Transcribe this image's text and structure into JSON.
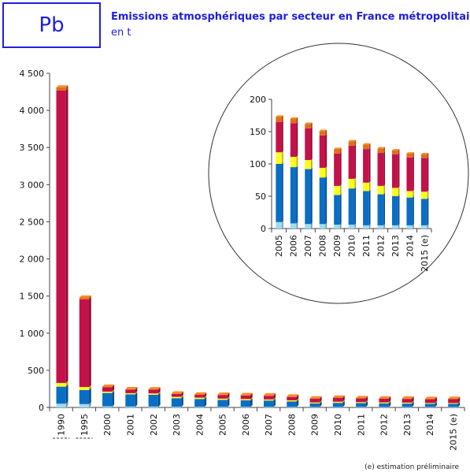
{
  "header": {
    "code": "Pb",
    "title": "Emissions atmosphériques par secteur en France métropolitaine",
    "subtitle": "en t"
  },
  "footnote": "(e) estimation préliminaire",
  "colors": {
    "light_blue": "#9fdcf2",
    "blue": "#0a6ec4",
    "yellow": "#fdfd1e",
    "red": "#c4114a",
    "orange": "#e26e1c",
    "accent": "#1f1fdc"
  },
  "chart_data": [
    {
      "type": "bar",
      "stacked": true,
      "categories": [
        "1990",
        "1995",
        "2000",
        "2001",
        "2002",
        "2003",
        "2004",
        "2005",
        "2006",
        "2007",
        "2008",
        "2009",
        "2010",
        "2011",
        "2012",
        "2013",
        "2014",
        "2015 (e)"
      ],
      "ylim": [
        0,
        4500
      ],
      "yticks": [
        "0",
        "500",
        "1 000",
        "1 500",
        "2 000",
        "2 500",
        "3 000",
        "3 500",
        "4 000",
        "4 500"
      ],
      "ytick_values": [
        0,
        500,
        1000,
        1500,
        2000,
        2500,
        3000,
        3500,
        4000,
        4500
      ],
      "series": [
        {
          "color_key": "light_blue",
          "values": [
            50,
            45,
            15,
            12,
            12,
            10,
            9,
            8,
            8,
            8,
            7,
            6,
            6,
            6,
            6,
            6,
            6,
            6
          ]
        },
        {
          "color_key": "blue",
          "values": [
            230,
            190,
            180,
            165,
            160,
            115,
            105,
            93,
            88,
            85,
            73,
            47,
            56,
            52,
            48,
            46,
            44,
            42
          ]
        },
        {
          "color_key": "yellow",
          "values": [
            50,
            40,
            18,
            15,
            17,
            18,
            18,
            18,
            17,
            15,
            16,
            14,
            15,
            13,
            13,
            13,
            10,
            11
          ]
        },
        {
          "color_key": "red",
          "values": [
            3940,
            1180,
            60,
            48,
            50,
            40,
            37,
            47,
            48,
            48,
            45,
            50,
            50,
            50,
            50,
            50,
            50,
            52
          ]
        },
        {
          "color_key": "orange",
          "values": [
            40,
            25,
            8,
            7,
            7,
            6,
            6,
            7,
            7,
            7,
            7,
            6,
            6,
            6,
            6,
            6,
            6,
            6
          ]
        }
      ]
    },
    {
      "type": "bar",
      "stacked": true,
      "inset": true,
      "categories": [
        "2005",
        "2006",
        "2007",
        "2008",
        "2009",
        "2010",
        "2011",
        "2012",
        "2013",
        "2014",
        "2015 (e)"
      ],
      "ylim": [
        0,
        200
      ],
      "yticks": [
        "0",
        "50",
        "100",
        "150",
        "200"
      ],
      "ytick_values": [
        0,
        50,
        100,
        150,
        200
      ],
      "series": [
        {
          "color_key": "light_blue",
          "values": [
            10,
            8,
            7,
            7,
            6,
            6,
            5,
            5,
            5,
            5,
            5
          ]
        },
        {
          "color_key": "blue",
          "values": [
            90,
            87,
            85,
            72,
            46,
            56,
            53,
            48,
            45,
            43,
            41
          ]
        },
        {
          "color_key": "yellow",
          "values": [
            18,
            16,
            14,
            15,
            14,
            15,
            13,
            13,
            13,
            10,
            11
          ]
        },
        {
          "color_key": "red",
          "values": [
            47,
            52,
            49,
            50,
            50,
            51,
            52,
            51,
            52,
            52,
            52
          ]
        },
        {
          "color_key": "orange",
          "values": [
            8,
            7,
            7,
            7,
            7,
            7,
            7,
            7,
            6,
            6,
            6
          ]
        }
      ]
    }
  ]
}
